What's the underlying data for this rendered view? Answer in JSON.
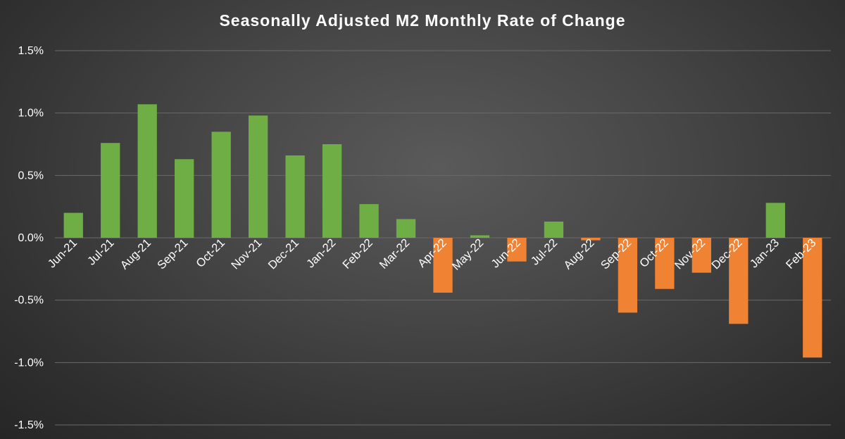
{
  "chart_data": {
    "type": "bar",
    "title": "Seasonally Adjusted M2 Monthly Rate of Change",
    "xlabel": "",
    "ylabel": "",
    "ylim": [
      -1.5,
      1.5
    ],
    "yticks": [
      1.5,
      1.0,
      0.5,
      0.0,
      -0.5,
      -1.0,
      -1.5
    ],
    "ytick_labels": [
      "1.5%",
      "1.0%",
      "0.5%",
      "0.0%",
      "-0.5%",
      "-1.0%",
      "-1.5%"
    ],
    "grid": true,
    "categories": [
      "Jun-21",
      "Jul-21",
      "Aug-21",
      "Sep-21",
      "Oct-21",
      "Nov-21",
      "Dec-21",
      "Jan-22",
      "Feb-22",
      "Mar-22",
      "Apr-22",
      "May-22",
      "Jun-22",
      "Jul-22",
      "Aug-22",
      "Sep-22",
      "Oct-22",
      "Nov-22",
      "Dec-22",
      "Jan-23",
      "Feb-23"
    ],
    "values": [
      0.2,
      0.76,
      1.07,
      0.63,
      0.85,
      0.98,
      0.66,
      0.75,
      0.27,
      0.15,
      -0.44,
      0.02,
      -0.19,
      0.13,
      -0.02,
      -0.6,
      -0.41,
      -0.28,
      -0.69,
      0.28,
      -0.96
    ],
    "colors": {
      "positive": "#6fae45",
      "negative": "#ef8233",
      "grid": "#6a6a6a",
      "text": "#ffffff"
    }
  }
}
